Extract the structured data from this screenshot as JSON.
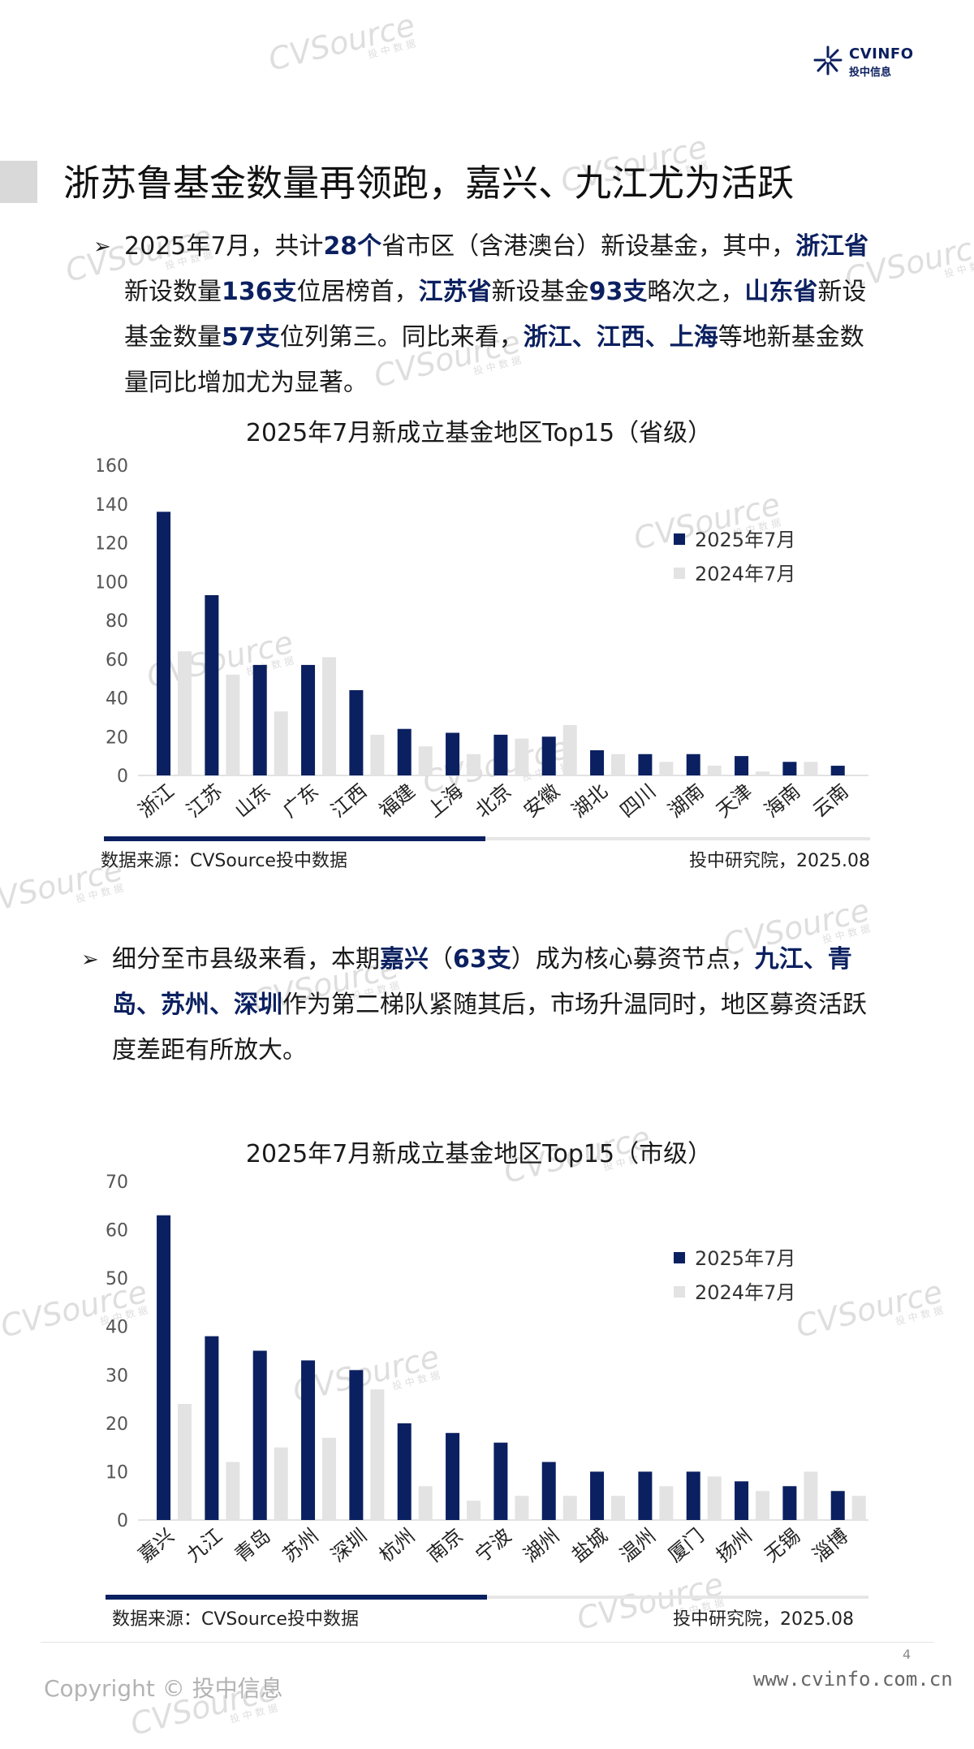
{
  "brand": {
    "name": "CVINFO",
    "sub": "投中信息"
  },
  "watermark": {
    "text": "CVSource",
    "sub": "投中数据"
  },
  "page_title": "浙苏鲁基金数量再领跑，嘉兴、九江尤为活跃",
  "bullet_glyph": "➢",
  "para1": {
    "t1": "2025年7月，共计",
    "b1": "28个",
    "t2": "省市区（含港澳台）新设基金，其中，",
    "b2": "浙江省",
    "t3": "新设数量",
    "b3": "136支",
    "t4": "位居榜首，",
    "b4": "江苏省",
    "t5": "新设基金",
    "b5": "93支",
    "t6": "略次之，",
    "b6": "山东省",
    "t7": "新设基金数量",
    "b7": "57支",
    "t8": "位列第三。同比来看，",
    "b8": "浙江、江西、上海",
    "t9": "等地新基金数量同比增加尤为显著。"
  },
  "para2": {
    "t1": "细分至市县级来看，本期",
    "b1": "嘉兴",
    "t2": "（",
    "b2": "63支",
    "t3": "）成为核心募资节点，",
    "b3": "九江、青岛、苏州、深圳",
    "t4": "作为第二梯队紧随其后，市场升温同时，地区募资活跃度差距有所放大。"
  },
  "chart_data": [
    {
      "type": "bar",
      "title": "2025年7月新成立基金地区Top15（省级）",
      "categories": [
        "浙江",
        "江苏",
        "山东",
        "广东",
        "江西",
        "福建",
        "上海",
        "北京",
        "安徽",
        "湖北",
        "四川",
        "湖南",
        "天津",
        "海南",
        "云南"
      ],
      "series": [
        {
          "name": "2025年7月",
          "color": "#0b2060",
          "values": [
            136,
            93,
            57,
            57,
            44,
            24,
            22,
            21,
            20,
            13,
            11,
            11,
            10,
            7,
            5
          ]
        },
        {
          "name": "2024年7月",
          "color": "#e3e3e3",
          "values": [
            64,
            52,
            33,
            61,
            21,
            15,
            11,
            19,
            26,
            11,
            7,
            5,
            2,
            7,
            0
          ]
        }
      ],
      "ylim": [
        0,
        160
      ],
      "yticks": [
        0,
        20,
        40,
        60,
        80,
        100,
        120,
        140,
        160
      ],
      "legend": "right",
      "source": "数据来源：CVSource投中数据",
      "credit": "投中研究院，2025.08"
    },
    {
      "type": "bar",
      "title": "2025年7月新成立基金地区Top15（市级）",
      "categories": [
        "嘉兴",
        "九江",
        "青岛",
        "苏州",
        "深圳",
        "杭州",
        "南京",
        "宁波",
        "湖州",
        "盐城",
        "温州",
        "厦门",
        "扬州",
        "无锡",
        "淄博"
      ],
      "series": [
        {
          "name": "2025年7月",
          "color": "#0b2060",
          "values": [
            63,
            38,
            35,
            33,
            31,
            20,
            18,
            16,
            12,
            10,
            10,
            10,
            8,
            7,
            6
          ]
        },
        {
          "name": "2024年7月",
          "color": "#e3e3e3",
          "values": [
            24,
            12,
            15,
            17,
            27,
            7,
            4,
            5,
            5,
            5,
            7,
            9,
            6,
            10,
            5
          ]
        }
      ],
      "ylim": [
        0,
        70
      ],
      "yticks": [
        0,
        10,
        20,
        30,
        40,
        50,
        60,
        70
      ],
      "legend": "right",
      "source": "数据来源：CVSource投中数据",
      "credit": "投中研究院，2025.08"
    }
  ],
  "footer": {
    "page_number": "4",
    "copyright": "Copyright © 投中信息",
    "website": "www.cvinfo.com.cn"
  }
}
